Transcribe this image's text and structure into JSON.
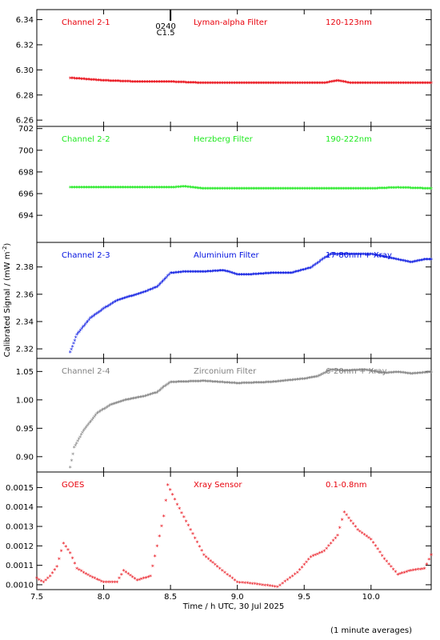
{
  "chart_data": {
    "type": "scatter",
    "xlabel": "Time / h UTC, 30 Jul 2025",
    "ylabel": "Calibrated Signal / (mW m",
    "ylabel_sup": "-2",
    "ylabel_end": ")",
    "note": "(1 minute averages)",
    "xlim": [
      7.5,
      10.45
    ],
    "x_ticks": [
      "7.5",
      "8.0",
      "8.5",
      "9.0",
      "9.5",
      "10.0"
    ],
    "flare_marker": {
      "x": 8.5,
      "labels": [
        "0240",
        "C1.5"
      ]
    },
    "panels": [
      {
        "channel": "Channel 2-1",
        "filter": "Lyman-alpha Filter",
        "band": "120-123nm",
        "color": "#e8000b",
        "ylim": [
          6.255,
          6.348
        ],
        "y_ticks": [
          "6.26",
          "6.28",
          "6.30",
          "6.32",
          "6.34"
        ],
        "points": [
          [
            7.75,
            6.293
          ],
          [
            8.0,
            6.291
          ],
          [
            8.25,
            6.29
          ],
          [
            8.5,
            6.29
          ],
          [
            8.75,
            6.289
          ],
          [
            9.0,
            6.289
          ],
          [
            9.25,
            6.289
          ],
          [
            9.5,
            6.289
          ],
          [
            9.65,
            6.289
          ],
          [
            9.75,
            6.291
          ],
          [
            9.85,
            6.289
          ],
          [
            10.0,
            6.289
          ],
          [
            10.2,
            6.289
          ],
          [
            10.45,
            6.289
          ]
        ]
      },
      {
        "channel": "Channel 2-2",
        "filter": "Herzberg Filter",
        "band": "190-222nm",
        "color": "#1ee81e",
        "ylim": [
          691.5,
          702.2
        ],
        "y_ticks": [
          "694",
          "696",
          "698",
          "700",
          "702"
        ],
        "points": [
          [
            7.75,
            696.5
          ],
          [
            8.0,
            696.5
          ],
          [
            8.25,
            696.5
          ],
          [
            8.5,
            696.5
          ],
          [
            8.6,
            696.6
          ],
          [
            8.75,
            696.4
          ],
          [
            9.0,
            696.4
          ],
          [
            9.25,
            696.4
          ],
          [
            9.5,
            696.4
          ],
          [
            9.75,
            696.4
          ],
          [
            10.0,
            696.4
          ],
          [
            10.2,
            696.5
          ],
          [
            10.45,
            696.4
          ]
        ]
      },
      {
        "channel": "Channel 2-3",
        "filter": "Aluminium Filter",
        "band": "17-80nm + Xray",
        "color": "#0010e0",
        "ylim": [
          2.313,
          2.398
        ],
        "y_ticks": [
          "2.32",
          "2.34",
          "2.36",
          "2.38"
        ],
        "points": [
          [
            7.75,
            2.317
          ],
          [
            7.8,
            2.33
          ],
          [
            7.9,
            2.342
          ],
          [
            8.0,
            2.349
          ],
          [
            8.1,
            2.355
          ],
          [
            8.2,
            2.358
          ],
          [
            8.3,
            2.361
          ],
          [
            8.4,
            2.365
          ],
          [
            8.47,
            2.372
          ],
          [
            8.5,
            2.375
          ],
          [
            8.6,
            2.376
          ],
          [
            8.75,
            2.376
          ],
          [
            8.9,
            2.377
          ],
          [
            9.0,
            2.374
          ],
          [
            9.1,
            2.374
          ],
          [
            9.25,
            2.375
          ],
          [
            9.4,
            2.375
          ],
          [
            9.55,
            2.379
          ],
          [
            9.65,
            2.386
          ],
          [
            9.7,
            2.389
          ],
          [
            9.8,
            2.389
          ],
          [
            9.9,
            2.389
          ],
          [
            10.0,
            2.389
          ],
          [
            10.1,
            2.387
          ],
          [
            10.2,
            2.385
          ],
          [
            10.3,
            2.383
          ],
          [
            10.4,
            2.385
          ],
          [
            10.45,
            2.385
          ]
        ]
      },
      {
        "channel": "Channel 2-4",
        "filter": "Zirconium Filter",
        "band": "6-20nm + Xray",
        "color": "#808080",
        "ylim": [
          0.873,
          1.073
        ],
        "y_ticks": [
          "0.90",
          "0.95",
          "1.00",
          "1.05"
        ],
        "points": [
          [
            7.75,
            0.88
          ],
          [
            7.78,
            0.915
          ],
          [
            7.85,
            0.945
          ],
          [
            7.95,
            0.975
          ],
          [
            8.05,
            0.99
          ],
          [
            8.15,
            0.998
          ],
          [
            8.3,
            1.005
          ],
          [
            8.4,
            1.012
          ],
          [
            8.45,
            1.022
          ],
          [
            8.5,
            1.03
          ],
          [
            8.75,
            1.032
          ],
          [
            9.0,
            1.028
          ],
          [
            9.25,
            1.03
          ],
          [
            9.5,
            1.036
          ],
          [
            9.6,
            1.04
          ],
          [
            9.7,
            1.052
          ],
          [
            9.8,
            1.05
          ],
          [
            9.95,
            1.052
          ],
          [
            10.1,
            1.046
          ],
          [
            10.2,
            1.048
          ],
          [
            10.3,
            1.045
          ],
          [
            10.45,
            1.048
          ]
        ]
      },
      {
        "channel": "GOES",
        "filter": "Xray Sensor",
        "band": "0.1-0.8nm",
        "color": "#e8000b",
        "ylim": [
          0.000975,
          0.00158
        ],
        "y_ticks": [
          "0.0010",
          "0.0011",
          "0.0012",
          "0.0013",
          "0.0014",
          "0.0015"
        ],
        "points": [
          [
            7.5,
            0.00103
          ],
          [
            7.55,
            0.00101
          ],
          [
            7.6,
            0.00104
          ],
          [
            7.65,
            0.00109
          ],
          [
            7.7,
            0.00121
          ],
          [
            7.75,
            0.00116
          ],
          [
            7.8,
            0.00108
          ],
          [
            7.9,
            0.00104
          ],
          [
            8.0,
            0.00101
          ],
          [
            8.1,
            0.00101
          ],
          [
            8.15,
            0.00107
          ],
          [
            8.25,
            0.00102
          ],
          [
            8.35,
            0.00104
          ],
          [
            8.45,
            0.00135
          ],
          [
            8.48,
            0.00151
          ],
          [
            8.55,
            0.00141
          ],
          [
            8.65,
            0.00128
          ],
          [
            8.75,
            0.00115
          ],
          [
            8.85,
            0.00109
          ],
          [
            9.0,
            0.00101
          ],
          [
            9.15,
            0.001
          ],
          [
            9.3,
            0.000985
          ],
          [
            9.45,
            0.00106
          ],
          [
            9.55,
            0.00114
          ],
          [
            9.65,
            0.00117
          ],
          [
            9.75,
            0.00125
          ],
          [
            9.8,
            0.00137
          ],
          [
            9.9,
            0.00128
          ],
          [
            10.0,
            0.00123
          ],
          [
            10.1,
            0.00113
          ],
          [
            10.2,
            0.00105
          ],
          [
            10.3,
            0.00107
          ],
          [
            10.4,
            0.00108
          ],
          [
            10.45,
            0.00115
          ]
        ]
      }
    ]
  }
}
